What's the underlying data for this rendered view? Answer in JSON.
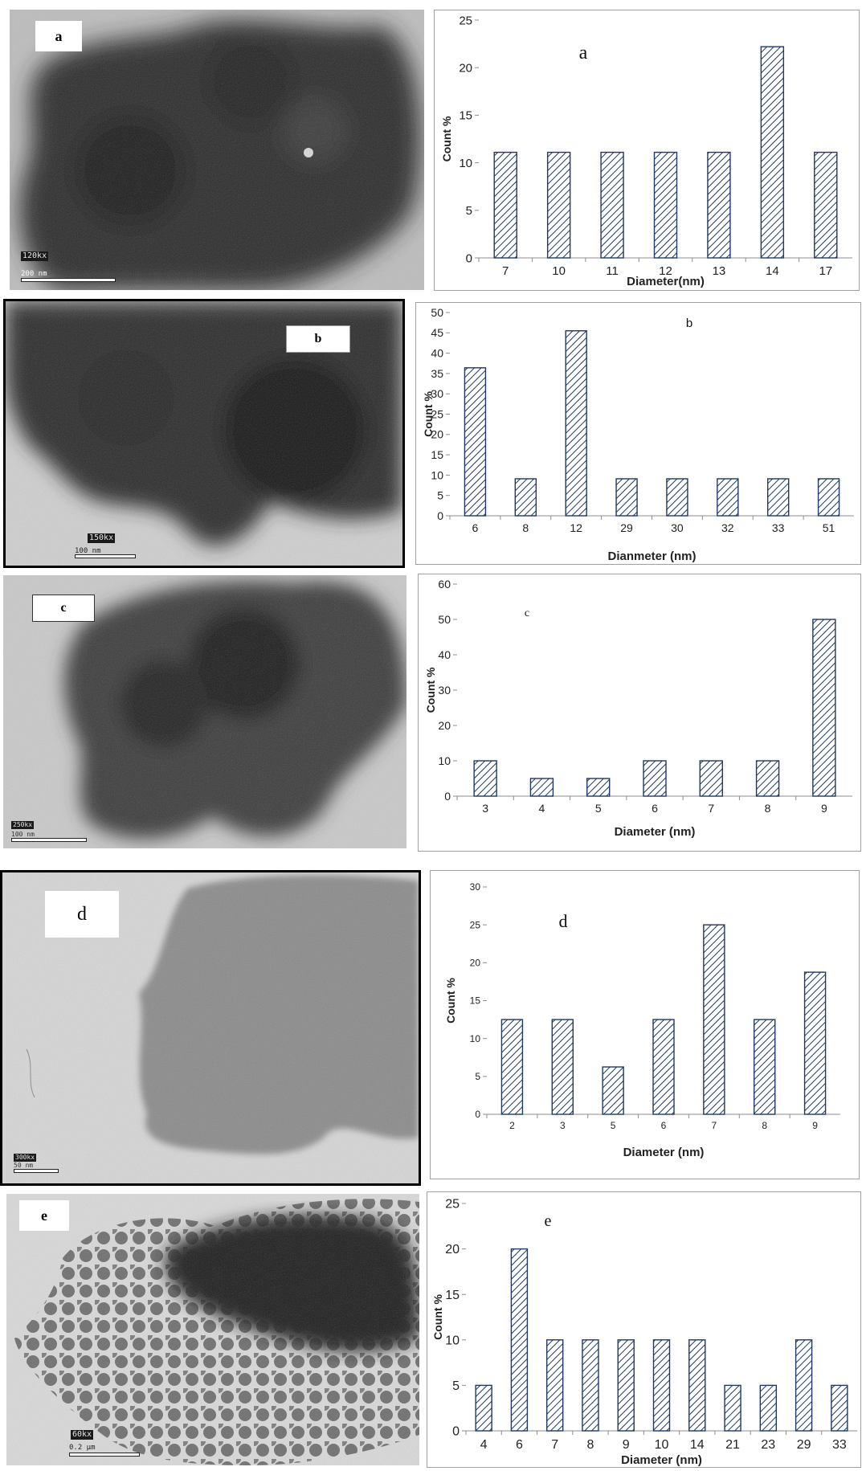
{
  "panels": [
    {
      "id": "a",
      "micrograph": {
        "label": "a",
        "magnification": "120kx",
        "scale": "200 nm"
      },
      "chart_data": {
        "type": "bar",
        "title": "a",
        "categories": [
          "7",
          "10",
          "11",
          "12",
          "13",
          "14",
          "17"
        ],
        "values": [
          11.1,
          11.1,
          11.1,
          11.1,
          11.1,
          22.2,
          11.1
        ],
        "xlabel": "Diameter(nm)",
        "ylabel": "Count %",
        "ylim": [
          0,
          25
        ],
        "yticks": [
          0,
          5,
          10,
          15,
          20,
          25
        ],
        "grid": false,
        "bar_color": "#1f3864"
      }
    },
    {
      "id": "b",
      "micrograph": {
        "label": "b",
        "magnification": "150kx",
        "scale": "100 nm"
      },
      "chart_data": {
        "type": "bar",
        "title": "b",
        "categories": [
          "6",
          "8",
          "12",
          "29",
          "30",
          "32",
          "33",
          "51"
        ],
        "values": [
          36.4,
          9.1,
          45.5,
          9.1,
          9.1,
          9.1,
          9.1,
          9.1
        ],
        "xlabel": "Dianmeter (nm)",
        "ylabel": "Count %",
        "ylim": [
          0,
          50
        ],
        "yticks": [
          0,
          5,
          10,
          15,
          20,
          25,
          30,
          35,
          40,
          45,
          50
        ],
        "grid": false,
        "bar_color": "#1f3864"
      }
    },
    {
      "id": "c",
      "micrograph": {
        "label": "c",
        "magnification": "250kx",
        "scale": "100 nm"
      },
      "chart_data": {
        "type": "bar",
        "title": "c",
        "categories": [
          "3",
          "4",
          "5",
          "6",
          "7",
          "8",
          "9"
        ],
        "values": [
          10,
          5,
          5,
          10,
          10,
          10,
          50
        ],
        "xlabel": "Diameter (nm)",
        "ylabel": "Count %",
        "ylim": [
          0,
          60
        ],
        "yticks": [
          0,
          10,
          20,
          30,
          40,
          50,
          60
        ],
        "grid": false,
        "bar_color": "#1f3864"
      }
    },
    {
      "id": "d",
      "micrograph": {
        "label": "d",
        "magnification": "300kx",
        "scale": "50 nm"
      },
      "chart_data": {
        "type": "bar",
        "title": "d",
        "categories": [
          "2",
          "3",
          "5",
          "6",
          "7",
          "8",
          "9"
        ],
        "values": [
          12.5,
          12.5,
          6.25,
          12.5,
          25,
          12.5,
          18.75
        ],
        "xlabel": "Diameter (nm)",
        "ylabel": "Count %",
        "ylim": [
          0,
          30
        ],
        "yticks": [
          0,
          5,
          10,
          15,
          20,
          25,
          30
        ],
        "grid": false,
        "bar_color": "#1f3864"
      }
    },
    {
      "id": "e",
      "micrograph": {
        "label": "e",
        "magnification": "60kx",
        "scale": "0.2 µm"
      },
      "chart_data": {
        "type": "bar",
        "title": "e",
        "categories": [
          "4",
          "6",
          "7",
          "8",
          "9",
          "10",
          "14",
          "21",
          "23",
          "29",
          "33"
        ],
        "values": [
          5,
          20,
          10,
          10,
          10,
          10,
          10,
          5,
          5,
          10,
          5
        ],
        "xlabel": "Diameter (nm)",
        "ylabel": "Count %",
        "ylim": [
          0,
          25
        ],
        "yticks": [
          0,
          5,
          10,
          15,
          20,
          25
        ],
        "grid": false,
        "bar_color": "#1f3864"
      }
    }
  ]
}
